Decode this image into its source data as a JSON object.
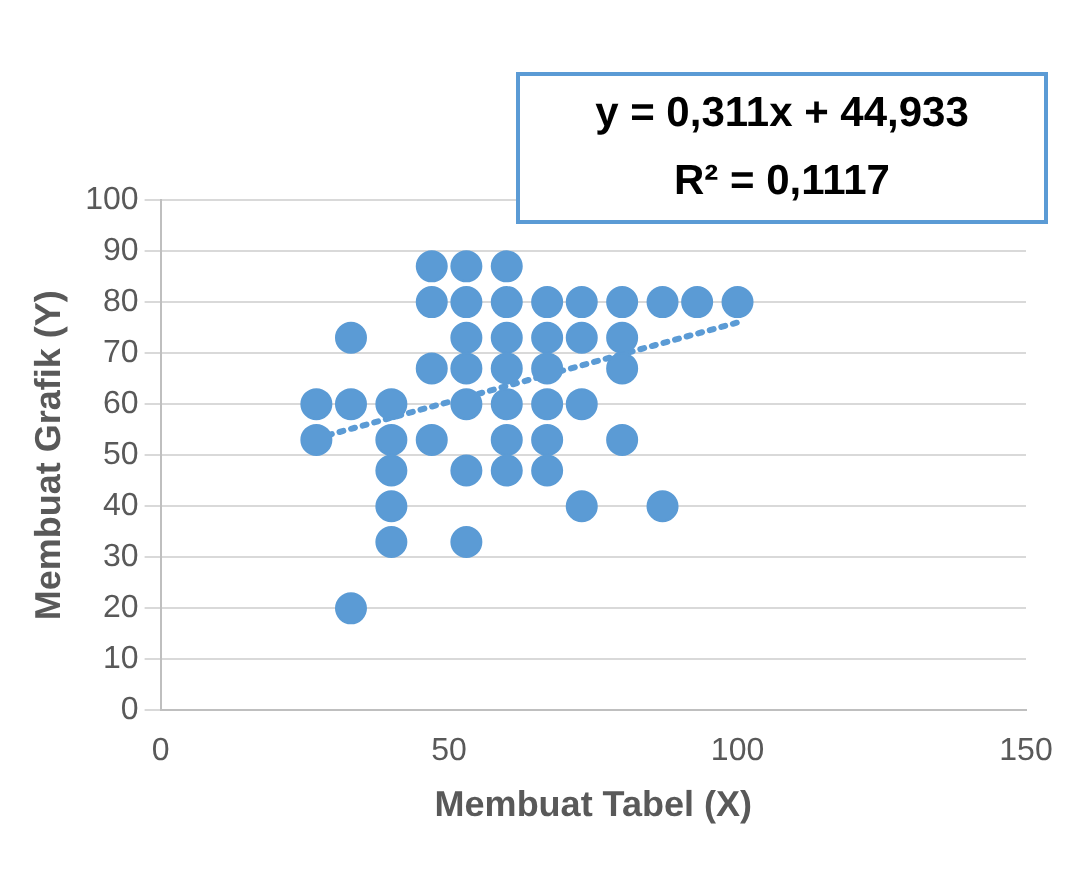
{
  "chart_data": {
    "type": "scatter",
    "xlabel": "Membuat Tabel (X)",
    "ylabel": "Membuat Grafik (Y)",
    "xlim": [
      0,
      150
    ],
    "xticks": [
      0,
      50,
      100,
      150
    ],
    "ylim": [
      0,
      100
    ],
    "yticks": [
      0,
      10,
      20,
      30,
      40,
      50,
      60,
      70,
      80,
      90,
      100
    ],
    "grid": "y",
    "legend": false,
    "marker": "circle",
    "series": [
      {
        "color": "#5b9bd5",
        "x": [
          27,
          27,
          33,
          33,
          33,
          40,
          40,
          40,
          40,
          40,
          47,
          47,
          47,
          47,
          53,
          53,
          53,
          53,
          53,
          53,
          53,
          60,
          60,
          60,
          60,
          60,
          60,
          60,
          67,
          67,
          67,
          67,
          67,
          67,
          73,
          73,
          73,
          73,
          80,
          80,
          80,
          80,
          87,
          87,
          93,
          100
        ],
        "values": [
          60,
          53,
          73,
          60,
          20,
          60,
          53,
          47,
          40,
          33,
          87,
          80,
          67,
          53,
          87,
          80,
          73,
          67,
          60,
          47,
          33,
          87,
          80,
          73,
          67,
          60,
          53,
          47,
          80,
          73,
          67,
          60,
          53,
          47,
          80,
          73,
          60,
          40,
          80,
          73,
          67,
          53,
          80,
          40,
          80,
          80
        ]
      },
      {
        "type": "line",
        "line_style": "dotted",
        "marker": "none",
        "color": "#5b9bd5",
        "x": [
          27,
          100
        ],
        "values": [
          53.3,
          76.0
        ]
      }
    ],
    "annotations": [
      "y = 0,311x + 44,933",
      "R² = 0,1117"
    ]
  }
}
